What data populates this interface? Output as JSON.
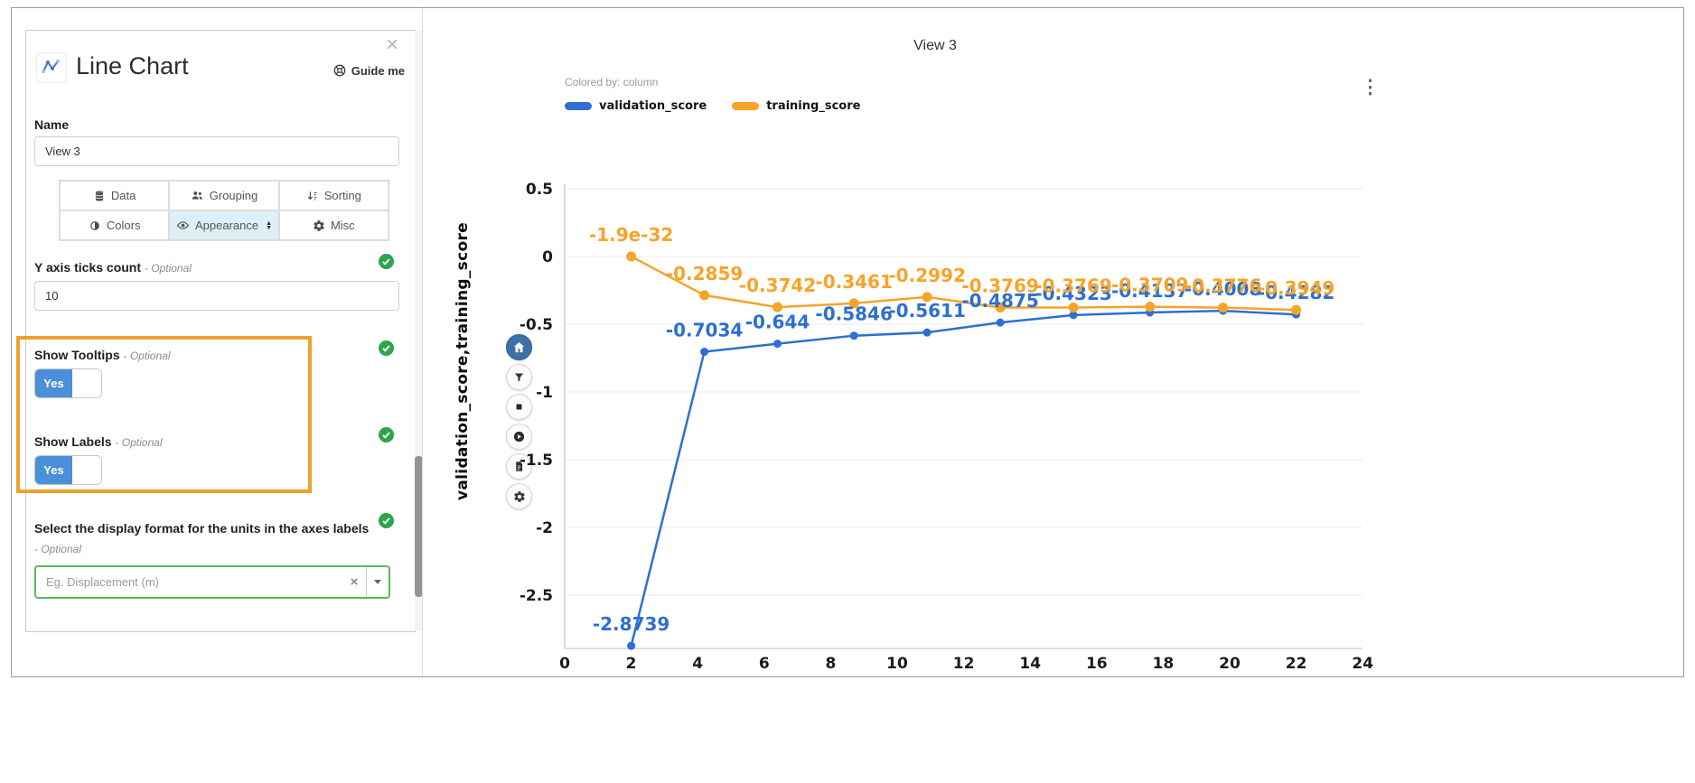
{
  "panel": {
    "title": "Line Chart",
    "guide_me_label": "Guide me",
    "close_glyph": "×",
    "name_label": "Name",
    "name_value": "View 3",
    "tabs": [
      {
        "label": "Data"
      },
      {
        "label": "Grouping"
      },
      {
        "label": "Sorting"
      },
      {
        "label": "Colors"
      },
      {
        "label": "Appearance",
        "selected": true
      },
      {
        "label": "Misc"
      }
    ],
    "y_ticks_field": {
      "label": "Y axis ticks count",
      "optional": "- Optional",
      "value": "10"
    },
    "show_tooltips_field": {
      "label": "Show Tooltips",
      "optional": "- Optional",
      "toggle_label": "Yes",
      "state": "on"
    },
    "show_labels_field": {
      "label": "Show Labels",
      "optional": "- Optional",
      "toggle_label": "Yes",
      "state": "on"
    },
    "display_format_field": {
      "label": "Select the display format for the units in the axes labels",
      "optional": "- Optional",
      "placeholder": "Eg. Displacement (m)",
      "clear_glyph": "×"
    },
    "highlight_color": "#f0a12c",
    "toggle_color": "#4a90d9",
    "check_color": "#2da44e",
    "select_border_color": "#5cb85c"
  },
  "toolbar": {
    "items": [
      {
        "icon": "home-icon",
        "active": true
      },
      {
        "icon": "filter-icon"
      },
      {
        "icon": "stop-icon"
      },
      {
        "icon": "play-icon"
      },
      {
        "icon": "report-icon"
      },
      {
        "icon": "settings-icon"
      }
    ]
  },
  "chart": {
    "title": "View 3",
    "colored_by": "Colored by: column",
    "menu_glyph": "⋮"
  },
  "chart_data": {
    "type": "line",
    "title": "View 3",
    "xlabel": "",
    "ylabel": "validation_score,training_score",
    "x": [
      2,
      4.2,
      6.4,
      8.7,
      10.9,
      13.1,
      15.3,
      17.6,
      19.8,
      22
    ],
    "series": [
      {
        "name": "validation_score",
        "color": "#2d6fd2",
        "values": [
          -2.8739,
          -0.7034,
          -0.644,
          -0.5846,
          -0.5611,
          -0.4875,
          -0.4323,
          -0.4137,
          -0.4008,
          -0.4282
        ],
        "labels": [
          "-2.8739",
          "-0.7034",
          "-0.644",
          "-0.5846",
          "-0.5611",
          "-0.4875",
          "-0.4323",
          "-0.4137",
          "-0.4008",
          "-0.4282"
        ]
      },
      {
        "name": "training_score",
        "color": "#f7a329",
        "values": [
          -1.9e-32,
          -0.2859,
          -0.3742,
          -0.3461,
          -0.2992,
          -0.3769,
          -0.3769,
          -0.3709,
          -0.3776,
          -0.3949
        ],
        "labels": [
          "-1.9e-32",
          "-0.2859",
          "-0.3742",
          "-0.3461",
          "-0.2992",
          "-0.3769",
          "-0.3769",
          "-0.3709",
          "-0.3776",
          "-0.3949"
        ]
      }
    ],
    "xticks": [
      0,
      2,
      4,
      6,
      8,
      10,
      12,
      14,
      16,
      18,
      20,
      22,
      24
    ],
    "yticks": [
      0.5,
      0,
      -0.5,
      -1,
      -1.5,
      -2,
      -2.5
    ],
    "xlim": [
      0,
      24
    ],
    "ylim": [
      -2.95,
      0.6
    ],
    "grid": "horizontal-only",
    "legend_position": "top-left",
    "labels_shown": true
  }
}
